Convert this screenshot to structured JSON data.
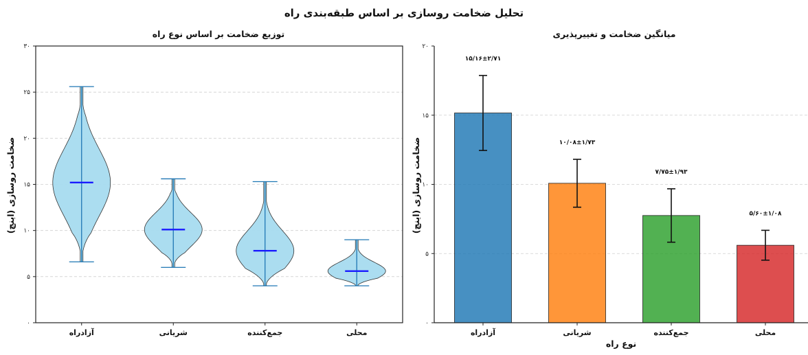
{
  "figure": {
    "suptitle": "تحلیل ضخامت روسازی بر اساس طبقه‌بندی راه"
  },
  "chart_data": [
    {
      "type": "violin",
      "title": "توزیع ضخامت بر اساس نوع راه",
      "xlabel": "",
      "ylabel": "ضخامت روسازی (اینچ)",
      "ylim": [
        0,
        30
      ],
      "yticks": [
        0,
        5,
        10,
        15,
        20,
        25,
        30
      ],
      "ytick_labels": [
        "۰",
        "۵",
        "۱۰",
        "۱۵",
        "۲۰",
        "۲۵",
        "۳۰"
      ],
      "categories": [
        "آزادراه",
        "شریانی",
        "جمع‌کننده",
        "محلی"
      ],
      "grid": "y-dashed",
      "colors": {
        "fill": "#a6dbef",
        "edge": "#333333",
        "whisker": "#1f77b4",
        "median": "#1a1aff"
      },
      "series": [
        {
          "min": 6.6,
          "max": 25.6,
          "median": 15.2
        },
        {
          "min": 6.0,
          "max": 15.6,
          "median": 10.1
        },
        {
          "min": 4.0,
          "max": 15.3,
          "median": 7.8
        },
        {
          "min": 4.0,
          "max": 9.0,
          "median": 5.6
        }
      ]
    },
    {
      "type": "bar",
      "title": "میانگین ضخامت و تغییرپذیری",
      "xlabel": "نوع راه",
      "ylabel": "ضخامت روسازی (اینچ)",
      "ylim": [
        0,
        20
      ],
      "yticks": [
        0,
        5,
        10,
        15,
        20
      ],
      "ytick_labels": [
        "۰",
        "۵",
        "۱۰",
        "۱۵",
        "۲۰"
      ],
      "categories": [
        "آزادراه",
        "شریانی",
        "جمع‌کننده",
        "محلی"
      ],
      "grid": "y-dashed",
      "values": [
        15.16,
        10.08,
        7.75,
        5.6
      ],
      "errors": [
        2.71,
        1.73,
        1.93,
        1.08
      ],
      "value_labels": [
        "۱۵/۱۶±۲/۷۱",
        "۱۰/۰۸±۱/۷۳",
        "۷/۷۵±۱/۹۳",
        "۵/۶۰±۱/۰۸"
      ],
      "colors": [
        "#1f77b4",
        "#ff7f0e",
        "#2ca02c",
        "#d62728"
      ]
    }
  ]
}
